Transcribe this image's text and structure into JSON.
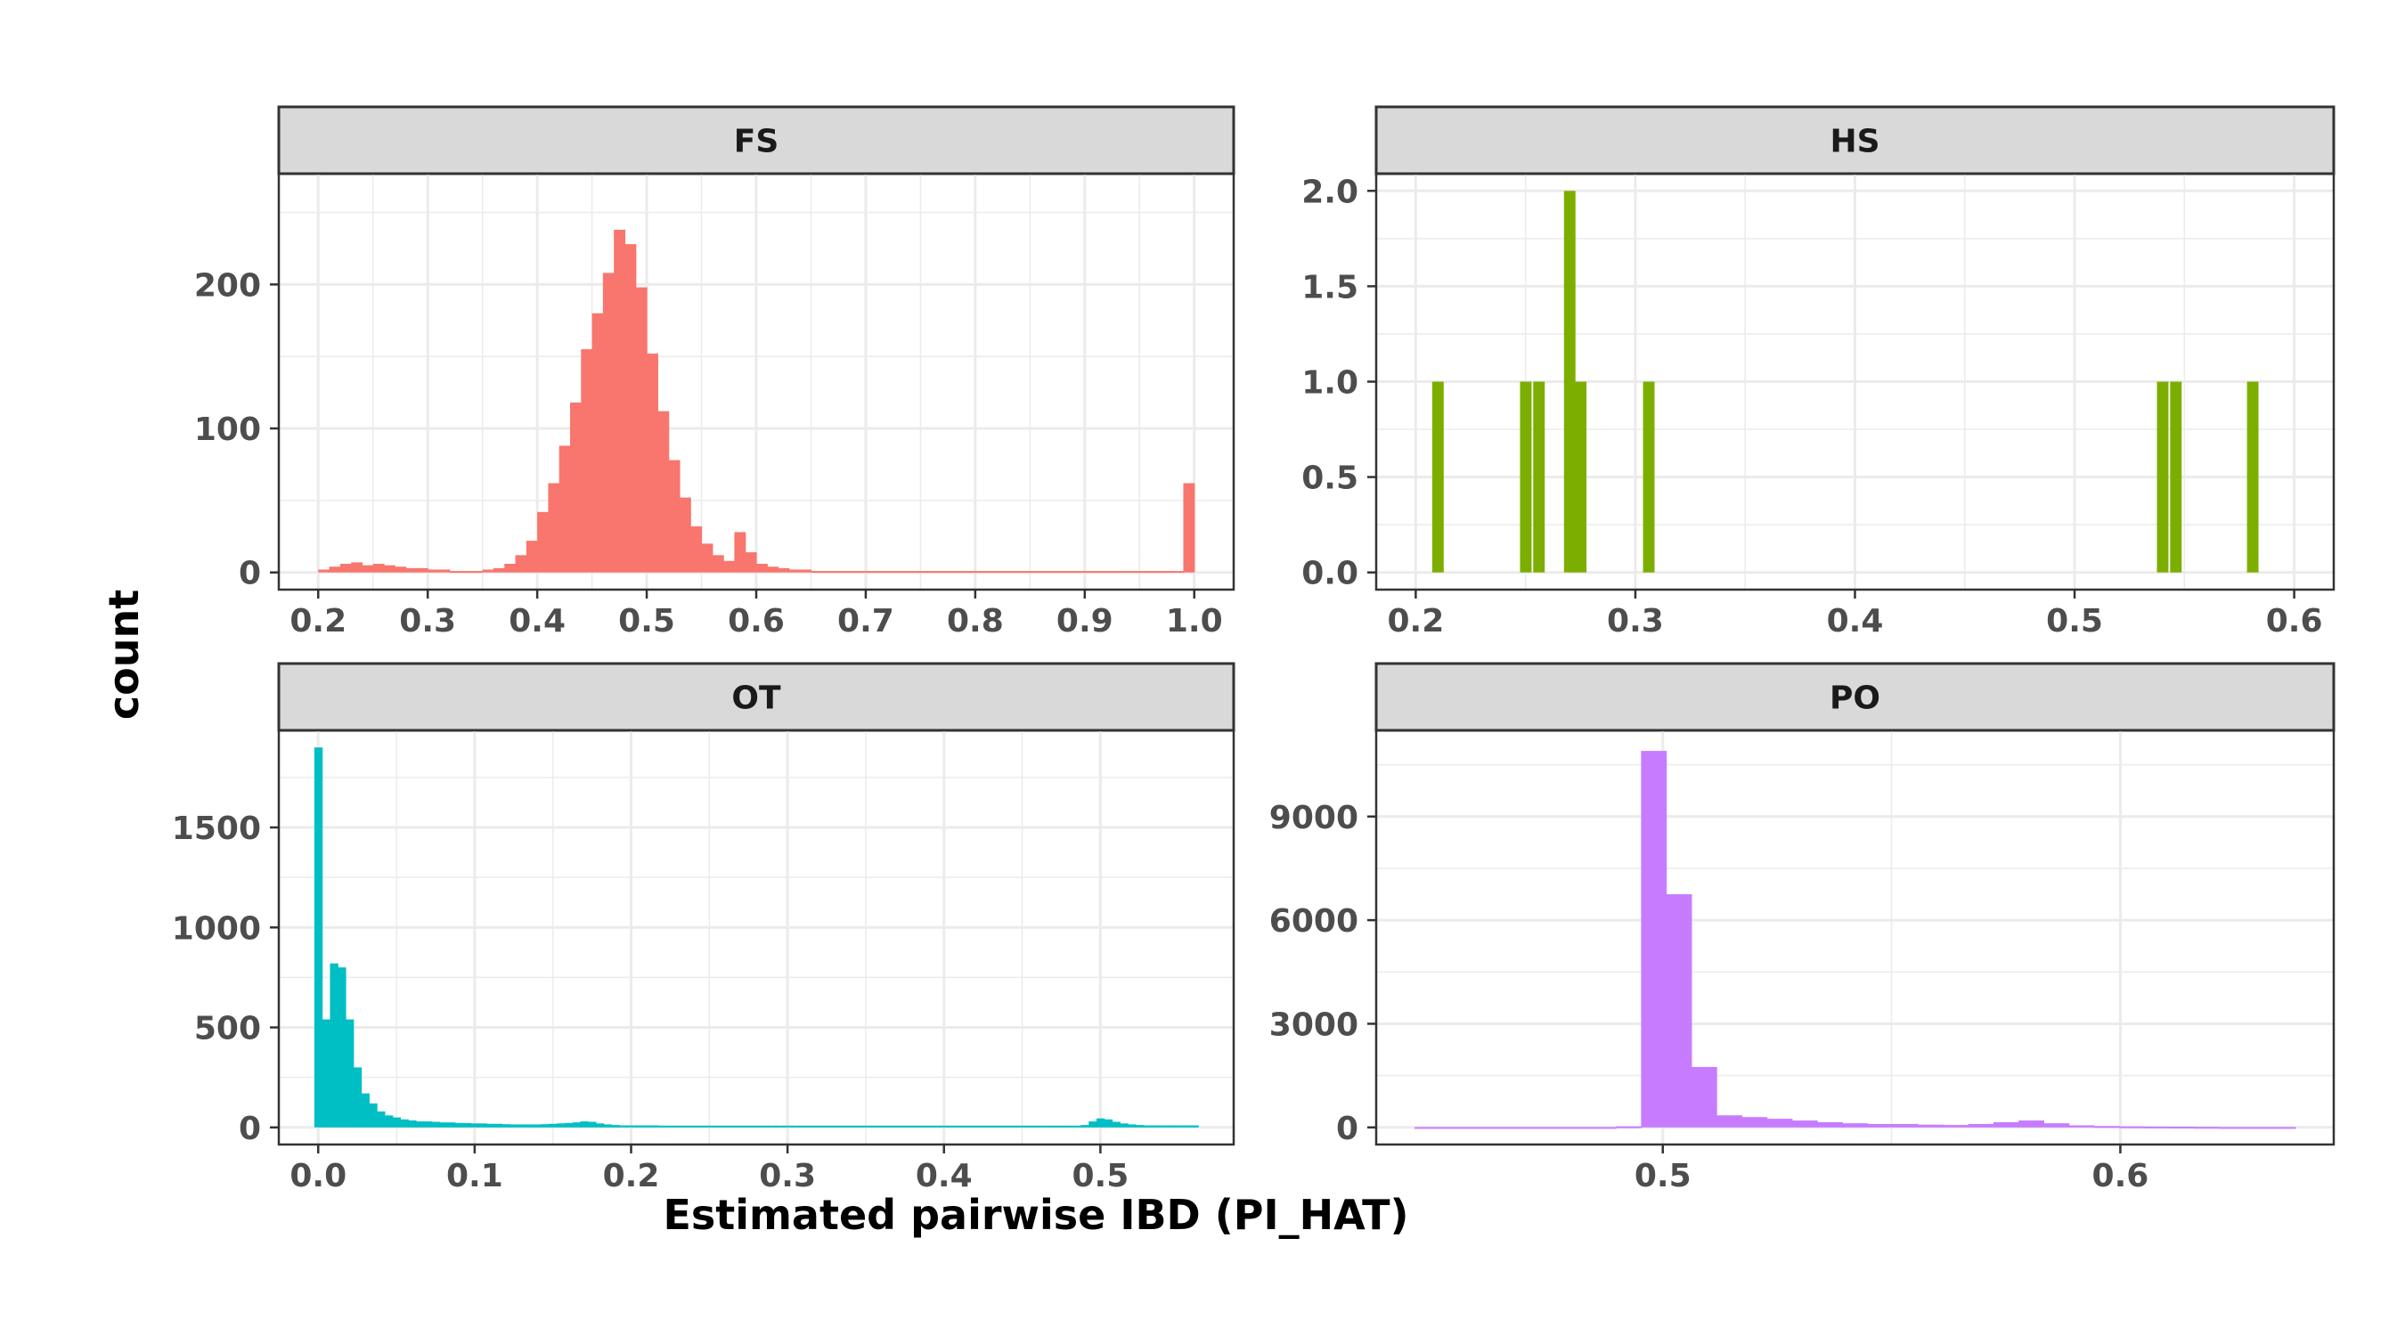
{
  "chart_data": {
    "type": "bar",
    "xlabel": "Estimated pairwise IBD (PI_HAT)",
    "ylabel": "count",
    "grid": true,
    "legend": "none",
    "panels": [
      {
        "name": "FS",
        "color": "#F8766D",
        "xlim": [
          0.2,
          1.0
        ],
        "ylim": [
          0,
          265
        ],
        "xticks": [
          0.2,
          0.3,
          0.4,
          0.5,
          0.6,
          0.7,
          0.8,
          0.9,
          1.0
        ],
        "xtick_labels": [
          "0.2",
          "0.3",
          "0.4",
          "0.5",
          "0.6",
          "0.7",
          "0.8",
          "0.9",
          "1.0"
        ],
        "yticks": [
          0,
          100,
          200
        ],
        "ytick_labels": [
          "0",
          "100",
          "200"
        ],
        "x": [
          0.205,
          0.215,
          0.225,
          0.235,
          0.245,
          0.255,
          0.265,
          0.275,
          0.285,
          0.295,
          0.305,
          0.315,
          0.325,
          0.335,
          0.345,
          0.355,
          0.365,
          0.375,
          0.385,
          0.395,
          0.405,
          0.415,
          0.425,
          0.435,
          0.445,
          0.455,
          0.465,
          0.475,
          0.485,
          0.495,
          0.505,
          0.515,
          0.525,
          0.535,
          0.545,
          0.555,
          0.565,
          0.575,
          0.585,
          0.595,
          0.605,
          0.615,
          0.625,
          0.635,
          0.645,
          0.655,
          0.665,
          0.675,
          0.685,
          0.695,
          0.705,
          0.715,
          0.725,
          0.735,
          0.745,
          0.755,
          0.765,
          0.775,
          0.785,
          0.795,
          0.805,
          0.815,
          0.825,
          0.835,
          0.845,
          0.855,
          0.865,
          0.875,
          0.885,
          0.895,
          0.905,
          0.915,
          0.925,
          0.935,
          0.945,
          0.955,
          0.965,
          0.975,
          0.985,
          0.995
        ],
        "values": [
          2,
          4,
          6,
          7,
          5,
          6,
          5,
          4,
          3,
          3,
          2,
          2,
          1,
          1,
          1,
          2,
          3,
          6,
          12,
          22,
          42,
          62,
          88,
          118,
          155,
          180,
          208,
          238,
          228,
          198,
          152,
          112,
          78,
          52,
          32,
          20,
          12,
          8,
          28,
          14,
          6,
          4,
          3,
          2,
          2,
          1,
          1,
          1,
          1,
          1,
          1,
          1,
          1,
          1,
          1,
          1,
          1,
          1,
          1,
          1,
          1,
          1,
          1,
          1,
          1,
          1,
          1,
          1,
          1,
          1,
          1,
          1,
          1,
          1,
          1,
          1,
          1,
          1,
          1,
          62
        ]
      },
      {
        "name": "HS",
        "color": "#7CAE00",
        "xlim": [
          0.2,
          0.6
        ],
        "ylim": [
          0,
          2
        ],
        "xticks": [
          0.2,
          0.3,
          0.4,
          0.5,
          0.6
        ],
        "xtick_labels": [
          "0.2",
          "0.3",
          "0.4",
          "0.5",
          "0.6"
        ],
        "yticks": [
          0,
          0.5,
          1.0,
          1.5,
          2.0
        ],
        "ytick_labels": [
          "0.0",
          "0.5",
          "1.0",
          "1.5",
          "2.0"
        ],
        "x": [
          0.21,
          0.25,
          0.256,
          0.27,
          0.275,
          0.306,
          0.54,
          0.546,
          0.581
        ],
        "values": [
          1,
          1,
          1,
          2,
          1,
          1,
          1,
          1,
          1
        ]
      },
      {
        "name": "OT",
        "color": "#00BFC4",
        "xlim": [
          0,
          0.56
        ],
        "ylim": [
          0,
          1900
        ],
        "xticks": [
          0.0,
          0.1,
          0.2,
          0.3,
          0.4,
          0.5
        ],
        "xtick_labels": [
          "0.0",
          "0.1",
          "0.2",
          "0.3",
          "0.4",
          "0.5"
        ],
        "yticks": [
          0,
          500,
          1000,
          1500
        ],
        "ytick_labels": [
          "0",
          "500",
          "1000",
          "1500"
        ],
        "x": [
          0.0,
          0.005,
          0.01,
          0.015,
          0.02,
          0.025,
          0.03,
          0.035,
          0.04,
          0.045,
          0.05,
          0.055,
          0.06,
          0.065,
          0.07,
          0.075,
          0.08,
          0.085,
          0.09,
          0.095,
          0.1,
          0.105,
          0.11,
          0.115,
          0.12,
          0.125,
          0.13,
          0.135,
          0.14,
          0.145,
          0.15,
          0.155,
          0.16,
          0.165,
          0.17,
          0.175,
          0.18,
          0.185,
          0.19,
          0.195,
          0.2,
          0.205,
          0.21,
          0.215,
          0.22,
          0.225,
          0.23,
          0.235,
          0.24,
          0.245,
          0.25,
          0.255,
          0.26,
          0.265,
          0.27,
          0.275,
          0.28,
          0.285,
          0.29,
          0.295,
          0.3,
          0.305,
          0.31,
          0.315,
          0.32,
          0.325,
          0.33,
          0.335,
          0.34,
          0.345,
          0.35,
          0.355,
          0.36,
          0.365,
          0.37,
          0.375,
          0.38,
          0.385,
          0.39,
          0.395,
          0.4,
          0.405,
          0.41,
          0.415,
          0.42,
          0.425,
          0.43,
          0.435,
          0.44,
          0.445,
          0.45,
          0.455,
          0.46,
          0.465,
          0.47,
          0.475,
          0.48,
          0.485,
          0.49,
          0.495,
          0.5,
          0.505,
          0.51,
          0.515,
          0.52,
          0.525,
          0.53,
          0.535,
          0.54,
          0.545,
          0.55,
          0.555,
          0.56
        ],
        "values": [
          1900,
          540,
          820,
          800,
          540,
          300,
          170,
          120,
          80,
          60,
          50,
          40,
          35,
          30,
          30,
          28,
          25,
          25,
          22,
          22,
          20,
          20,
          18,
          18,
          16,
          15,
          15,
          15,
          15,
          16,
          18,
          20,
          22,
          25,
          30,
          28,
          20,
          15,
          12,
          10,
          10,
          10,
          10,
          10,
          9,
          9,
          9,
          9,
          9,
          9,
          9,
          9,
          9,
          9,
          9,
          9,
          9,
          9,
          9,
          9,
          9,
          9,
          9,
          9,
          9,
          9,
          9,
          9,
          9,
          9,
          9,
          9,
          9,
          9,
          9,
          9,
          9,
          9,
          9,
          9,
          9,
          9,
          9,
          9,
          9,
          9,
          9,
          9,
          9,
          9,
          9,
          9,
          9,
          9,
          9,
          9,
          9,
          9,
          12,
          30,
          45,
          40,
          28,
          20,
          15,
          12,
          10,
          10,
          10,
          10,
          10,
          10,
          10
        ]
      },
      {
        "name": "PO",
        "color": "#C77CFF",
        "xlim": [
          0.446,
          0.638
        ],
        "ylim": [
          0,
          11000
        ],
        "xticks": [
          0.5,
          0.6
        ],
        "xtick_labels": [
          "0.5",
          "0.6"
        ],
        "yticks": [
          0,
          3000,
          6000,
          9000
        ],
        "ytick_labels": [
          "0",
          "3000",
          "6000",
          "9000"
        ],
        "x": [
          0.4485,
          0.454,
          0.4595,
          0.465,
          0.4705,
          0.476,
          0.4815,
          0.487,
          0.4925,
          0.498,
          0.5035,
          0.509,
          0.5145,
          0.52,
          0.5255,
          0.531,
          0.5365,
          0.542,
          0.5475,
          0.553,
          0.5585,
          0.564,
          0.5695,
          0.575,
          0.5805,
          0.586,
          0.5915,
          0.597,
          0.6025,
          0.608,
          0.6135,
          0.619,
          0.6245,
          0.63,
          0.6355
        ],
        "values": [
          10,
          10,
          10,
          10,
          10,
          10,
          10,
          10,
          30,
          10900,
          6750,
          1750,
          350,
          300,
          250,
          200,
          150,
          120,
          100,
          100,
          80,
          70,
          100,
          150,
          200,
          120,
          60,
          40,
          30,
          25,
          20,
          15,
          10,
          10,
          10
        ]
      }
    ]
  }
}
